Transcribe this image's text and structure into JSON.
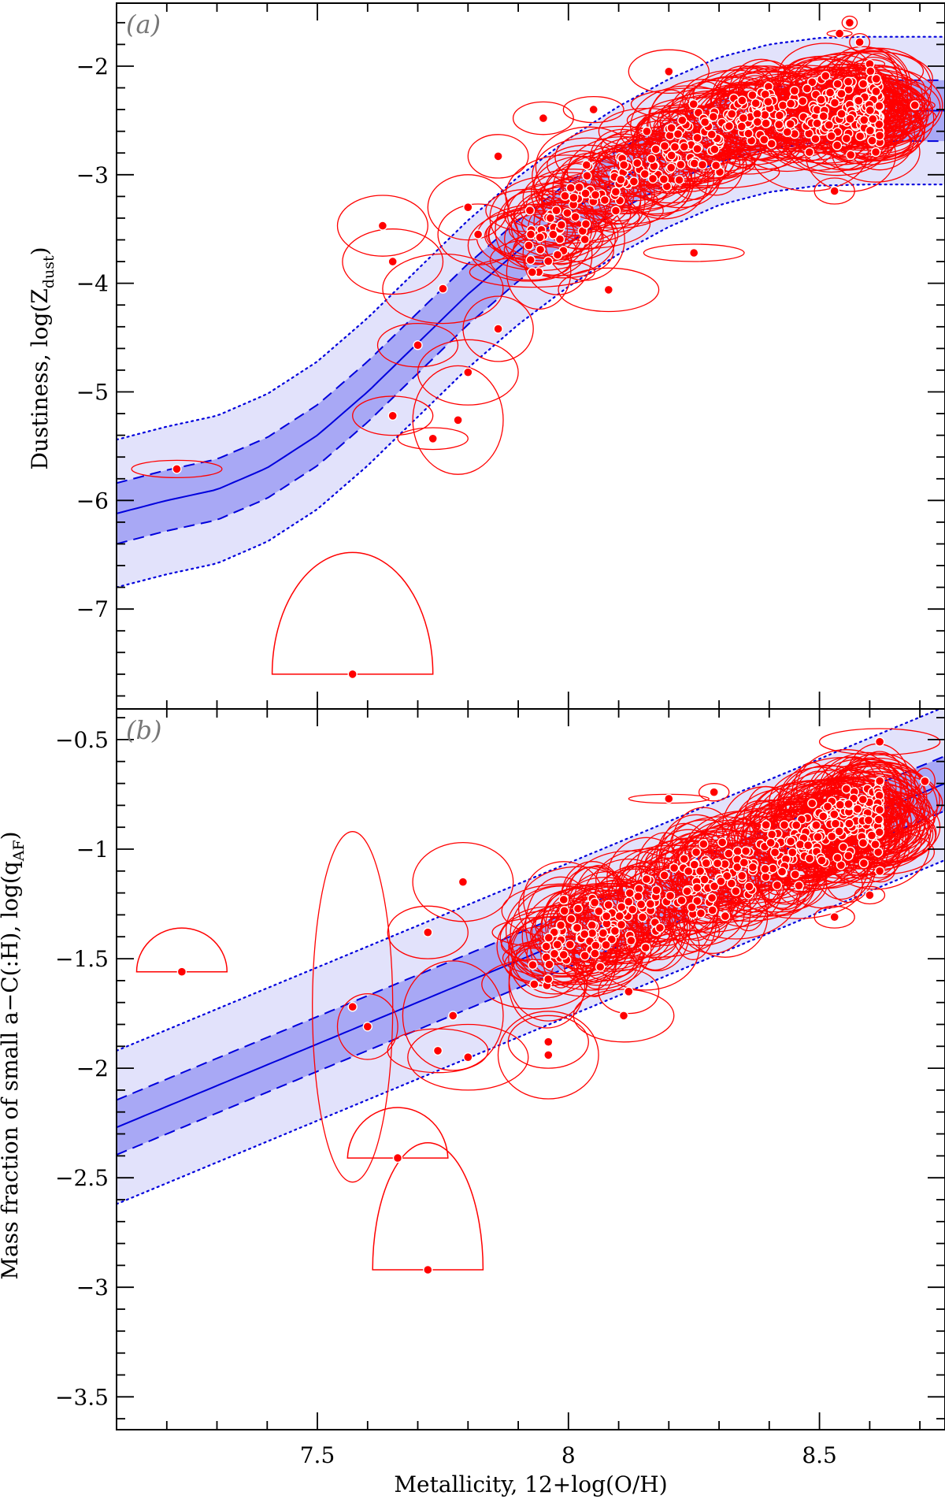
{
  "chart_data": [
    {
      "type": "scatter",
      "panel_label": "(a)",
      "ylabel": "Dustiness, log(Z",
      "ylabel_sub": "dust",
      "ylabel_close": ")",
      "xlim": [
        7.1,
        8.75
      ],
      "ylim": [
        -7.92,
        -1.42
      ],
      "x_ticks": [
        7.5,
        8,
        8.5
      ],
      "y_ticks": [
        -7,
        -6,
        -5,
        -4,
        -3,
        -2
      ],
      "y_tick_labels": [
        "−7",
        "−6",
        "−5",
        "−4",
        "−3",
        "−2"
      ],
      "model": {
        "x": [
          7.1,
          7.2,
          7.3,
          7.4,
          7.5,
          7.6,
          7.7,
          7.8,
          7.9,
          8.0,
          8.1,
          8.2,
          8.3,
          8.4,
          8.5,
          8.6,
          8.75
        ],
        "y": [
          -6.12,
          -6.0,
          -5.9,
          -5.7,
          -5.4,
          -5.0,
          -4.55,
          -4.1,
          -3.7,
          -3.35,
          -3.05,
          -2.8,
          -2.6,
          -2.48,
          -2.42,
          -2.41,
          -2.41
        ],
        "sigma_inner": 0.28,
        "sigma_outer": 0.68
      },
      "points": [
        {
          "x": 7.22,
          "y": -5.71,
          "ex": 0.09,
          "ey": 0.08
        },
        {
          "x": 7.57,
          "y": -7.6,
          "ex": 0.16,
          "ey": 1.12,
          "shape": "upper"
        },
        {
          "x": 7.63,
          "y": -3.47,
          "ex": 0.09,
          "ey": 0.28
        },
        {
          "x": 7.65,
          "y": -5.22,
          "ex": 0.08,
          "ey": 0.18
        },
        {
          "x": 7.65,
          "y": -3.8,
          "ex": 0.1,
          "ey": 0.3
        },
        {
          "x": 7.7,
          "y": -4.57,
          "ex": 0.08,
          "ey": 0.2
        },
        {
          "x": 7.73,
          "y": -5.43,
          "ex": 0.07,
          "ey": 0.1
        },
        {
          "x": 7.75,
          "y": -4.05,
          "ex": 0.12,
          "ey": 0.32
        },
        {
          "x": 7.78,
          "y": -5.26,
          "ex": 0.09,
          "ey": 0.5
        },
        {
          "x": 7.8,
          "y": -4.82,
          "ex": 0.1,
          "ey": 0.3
        },
        {
          "x": 7.8,
          "y": -3.3,
          "ex": 0.08,
          "ey": 0.3
        },
        {
          "x": 7.82,
          "y": -3.55,
          "ex": 0.08,
          "ey": 0.28
        },
        {
          "x": 7.86,
          "y": -4.42,
          "ex": 0.07,
          "ey": 0.3
        },
        {
          "x": 7.86,
          "y": -2.83,
          "ex": 0.06,
          "ey": 0.2
        },
        {
          "x": 7.95,
          "y": -2.48,
          "ex": 0.06,
          "ey": 0.15
        },
        {
          "x": 7.99,
          "y": -3.7,
          "ex": 0.1,
          "ey": 0.25
        },
        {
          "x": 8.05,
          "y": -2.4,
          "ex": 0.06,
          "ey": 0.12
        },
        {
          "x": 8.08,
          "y": -4.06,
          "ex": 0.1,
          "ey": 0.2
        },
        {
          "x": 8.2,
          "y": -2.05,
          "ex": 0.08,
          "ey": 0.2
        },
        {
          "x": 8.25,
          "y": -3.72,
          "ex": 0.1,
          "ey": 0.08
        },
        {
          "x": 8.56,
          "y": -1.6,
          "ex": 0.015,
          "ey": 0.06
        },
        {
          "x": 8.58,
          "y": -1.78,
          "ex": 0.02,
          "ey": 0.08
        },
        {
          "x": 8.54,
          "y": -1.7,
          "ex": 0.025,
          "ey": 0.03
        },
        {
          "x": 8.6,
          "y": -1.98,
          "ex": 0.03,
          "ey": 0.04
        },
        {
          "x": 8.69,
          "y": -2.36,
          "ex": 0.04,
          "ey": 0.05
        },
        {
          "x": 8.53,
          "y": -3.15,
          "ex": 0.04,
          "ey": 0.12
        },
        {
          "x": 8.62,
          "y": -2.6,
          "ex": 0.05,
          "ey": 0.1
        }
      ],
      "cloud": {
        "x_min": 7.92,
        "x_max": 8.62,
        "count": 340,
        "scatter": 0.26,
        "ex_range": [
          0.04,
          0.13
        ],
        "ey_range": [
          0.12,
          0.38
        ]
      }
    },
    {
      "type": "scatter",
      "panel_label": "(b)",
      "xlabel": "Metallicity, 12+log(O/H)",
      "ylabel": "Mass fraction of small a−C(:H), log(q",
      "ylabel_sub": "AF",
      "ylabel_close": ")",
      "xlim": [
        7.1,
        8.75
      ],
      "ylim": [
        -3.65,
        -0.36
      ],
      "x_ticks": [
        7.5,
        8,
        8.5
      ],
      "x_tick_labels": [
        "7.5",
        "8",
        "8.5"
      ],
      "y_ticks": [
        -3.5,
        -3,
        -2.5,
        -2,
        -1.5,
        -1,
        -0.5
      ],
      "y_tick_labels": [
        "−3.5",
        "−3",
        "−2.5",
        "−2",
        "−1.5",
        "−1",
        "−0.5"
      ],
      "model": {
        "x": [
          7.1,
          8.75
        ],
        "y": [
          -2.27,
          -0.7
        ],
        "sigma_inner": 0.125,
        "sigma_outer": 0.35
      },
      "points": [
        {
          "x": 7.23,
          "y": -1.56,
          "ex": 0.09,
          "ey": 0.2,
          "shape": "upper"
        },
        {
          "x": 7.57,
          "y": -1.72,
          "ex": 0.08,
          "ey": 0.8
        },
        {
          "x": 7.6,
          "y": -1.81,
          "ex": 0.06,
          "ey": 0.15
        },
        {
          "x": 7.66,
          "y": -2.41,
          "ex": 0.1,
          "ey": 0.24,
          "shape": "upper"
        },
        {
          "x": 7.72,
          "y": -2.92,
          "ex": 0.11,
          "ey": 0.58,
          "shape": "upper"
        },
        {
          "x": 7.72,
          "y": -1.38,
          "ex": 0.08,
          "ey": 0.12
        },
        {
          "x": 7.79,
          "y": -1.15,
          "ex": 0.1,
          "ey": 0.18
        },
        {
          "x": 7.77,
          "y": -1.76,
          "ex": 0.1,
          "ey": 0.25
        },
        {
          "x": 7.74,
          "y": -1.92,
          "ex": 0.1,
          "ey": 0.1
        },
        {
          "x": 7.8,
          "y": -1.95,
          "ex": 0.12,
          "ey": 0.15
        },
        {
          "x": 7.96,
          "y": -1.94,
          "ex": 0.1,
          "ey": 0.2
        },
        {
          "x": 7.96,
          "y": -1.88,
          "ex": 0.08,
          "ey": 0.12
        },
        {
          "x": 8.11,
          "y": -1.76,
          "ex": 0.1,
          "ey": 0.12
        },
        {
          "x": 8.12,
          "y": -1.65,
          "ex": 0.06,
          "ey": 0.1
        },
        {
          "x": 8.2,
          "y": -0.77,
          "ex": 0.08,
          "ey": 0.02
        },
        {
          "x": 8.29,
          "y": -0.74,
          "ex": 0.03,
          "ey": 0.04
        },
        {
          "x": 8.62,
          "y": -0.51,
          "ex": 0.12,
          "ey": 0.06
        },
        {
          "x": 8.71,
          "y": -0.69,
          "ex": 0.02,
          "ey": 0.06
        },
        {
          "x": 8.62,
          "y": -1.1,
          "ex": 0.03,
          "ey": 0.05
        },
        {
          "x": 8.6,
          "y": -1.21,
          "ex": 0.03,
          "ey": 0.04
        },
        {
          "x": 8.53,
          "y": -1.31,
          "ex": 0.04,
          "ey": 0.05
        }
      ],
      "cloud": {
        "x_min": 7.92,
        "x_max": 8.62,
        "count": 340,
        "scatter": 0.14,
        "ex_range": [
          0.04,
          0.13
        ],
        "ey_range": [
          0.07,
          0.22
        ]
      }
    }
  ],
  "colors": {
    "points": "#ff0000",
    "ellipses": "#ff0000",
    "model_line": "#0000dd",
    "band_inner": "#a8a8f5",
    "band_outer": "#e2e2fb",
    "axes": "#000000",
    "panel_label": "#777777"
  }
}
